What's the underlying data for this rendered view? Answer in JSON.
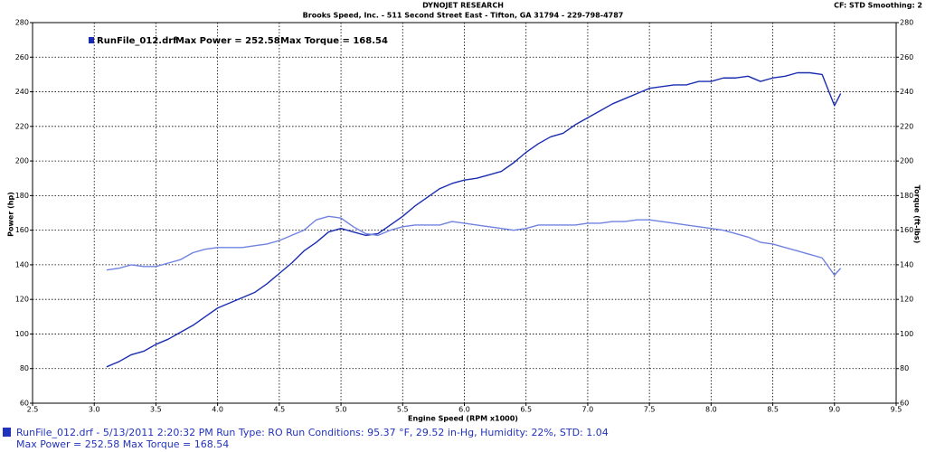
{
  "chart_data": {
    "type": "line",
    "title": "DYNOJET RESEARCH",
    "subtitle": "Brooks Speed, Inc. - 511 Second Street East - Tifton, GA 31794 - 229-798-4787",
    "corner_note": "CF: STD  Smoothing: 2",
    "legend_text": [
      "Max Power = 252.58",
      "Max Torque = 168.54"
    ],
    "footer": [
      "RunFile_012.drf - 5/13/2011 2:20:32 PM  Run Type: RO  Run Conditions: 95.37 °F, 29.52 in-Hg,  Humidity:  22%, STD: 1.04",
      "Max Power = 252.58  Max Torque = 168.54"
    ],
    "xlabel": "Engine Speed (RPM x1000)",
    "ylabel": "Power (hp)",
    "y2label": "Torque (ft-lbs)",
    "xlim": [
      2.5,
      9.5
    ],
    "xticks": [
      2.5,
      {
        "value": 3,
        "label": "3.0"
      },
      3.5,
      {
        "value": 4,
        "label": "4.0"
      },
      4.5,
      {
        "value": 5,
        "label": "5.0"
      },
      5.5,
      {
        "value": 6,
        "label": "6.0"
      },
      6.5,
      {
        "value": 7,
        "label": "7.0"
      },
      7.5,
      {
        "value": 8,
        "label": "8.0"
      },
      8.5,
      {
        "value": 9,
        "label": "9.0"
      },
      9.5
    ],
    "ylim": [
      60,
      280
    ],
    "yticks": [
      60,
      80,
      100,
      120,
      140,
      160,
      180,
      200,
      220,
      240,
      260,
      280
    ],
    "y2lim": [
      60,
      280
    ],
    "y2ticks": [
      60,
      80,
      100,
      120,
      140,
      160,
      180,
      200,
      220,
      240,
      260,
      280
    ],
    "grid": true,
    "x": [
      3.1,
      3.2,
      3.3,
      3.4,
      3.5,
      3.6,
      3.7,
      3.8,
      3.9,
      4.0,
      4.1,
      4.2,
      4.3,
      4.4,
      4.5,
      4.6,
      4.7,
      4.8,
      4.9,
      5.0,
      5.1,
      5.2,
      5.3,
      5.4,
      5.5,
      5.6,
      5.7,
      5.8,
      5.9,
      6.0,
      6.1,
      6.2,
      6.3,
      6.4,
      6.5,
      6.6,
      6.7,
      6.8,
      6.9,
      7.0,
      7.1,
      7.2,
      7.3,
      7.4,
      7.5,
      7.6,
      7.7,
      7.8,
      7.9,
      8.0,
      8.1,
      8.2,
      8.3,
      8.4,
      8.5,
      8.6,
      8.7,
      8.8,
      8.9,
      9.0,
      9.05
    ],
    "series": [
      {
        "name": "RunFile_012.drf",
        "color": "#1a2db0",
        "values": [
          81,
          84,
          88,
          90,
          94,
          97,
          101,
          105,
          110,
          115,
          118,
          121,
          124,
          129,
          135,
          141,
          148,
          153,
          159,
          161,
          159,
          157,
          158,
          163,
          168,
          174,
          179,
          184,
          187,
          189,
          190,
          192,
          194,
          199,
          205,
          210,
          214,
          216,
          221,
          225,
          229,
          233,
          236,
          239,
          242,
          243,
          244,
          244,
          246,
          246,
          248,
          248,
          249,
          246,
          248,
          249,
          251,
          251,
          250,
          232,
          239
        ]
      },
      {
        "color": "#7082e0",
        "axis": "y2",
        "values": [
          137,
          138,
          140,
          139,
          139,
          141,
          143,
          147,
          149,
          150,
          150,
          150,
          151,
          152,
          154,
          157,
          160,
          166,
          168,
          167,
          162,
          158,
          157,
          160,
          162,
          163,
          163,
          163,
          165,
          164,
          163,
          162,
          161,
          160,
          161,
          163,
          163,
          163,
          163,
          164,
          164,
          165,
          165,
          166,
          166,
          165,
          164,
          163,
          162,
          161,
          160,
          158,
          156,
          153,
          152,
          150,
          148,
          146,
          144,
          134,
          138
        ]
      }
    ]
  }
}
